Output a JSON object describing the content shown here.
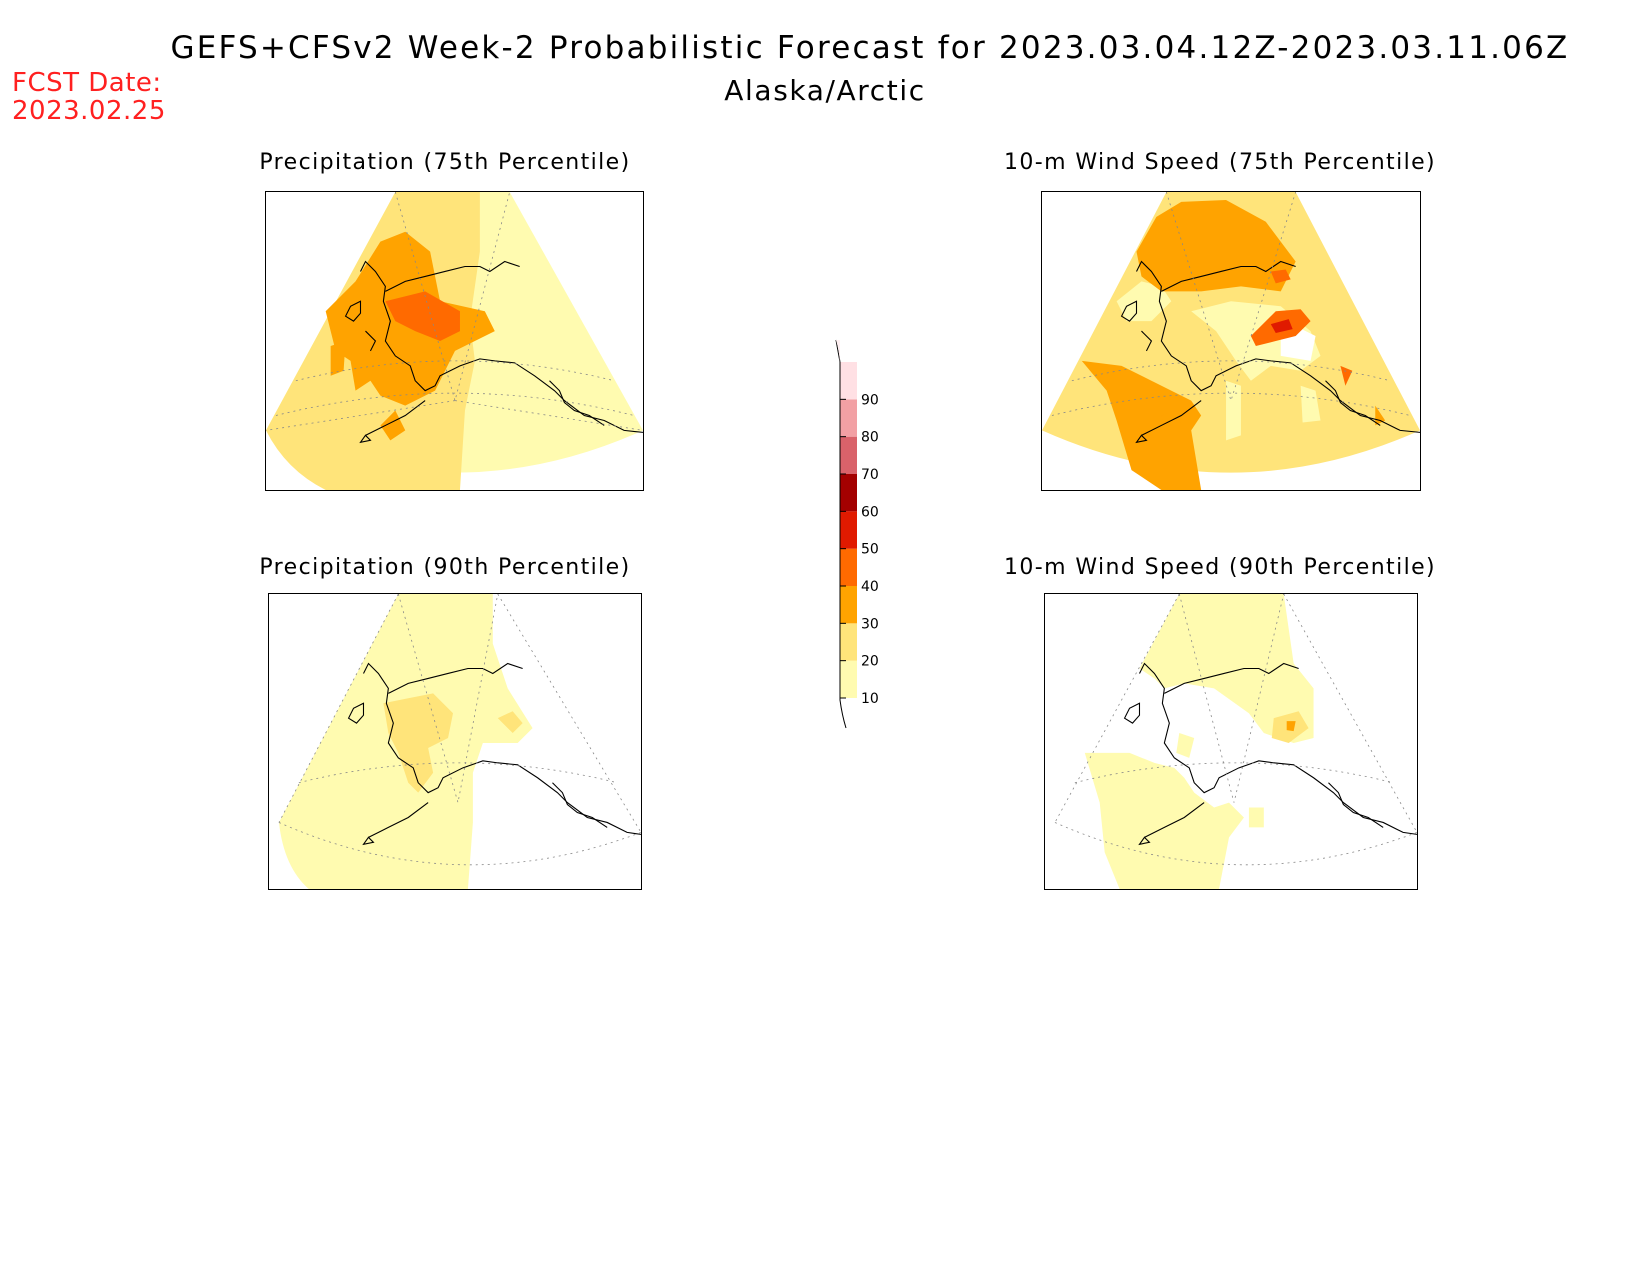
{
  "header": {
    "title": "GEFS+CFSv2 Week-2 Probabilistic Forecast for 2023.03.04.12Z-2023.03.11.06Z",
    "region": "Alaska/Arctic",
    "fcst_label": "FCST Date:",
    "fcst_date": "2023.02.25"
  },
  "panels": [
    {
      "id": "precip-75",
      "title": "Precipitation (75th Percentile)"
    },
    {
      "id": "wind-75",
      "title": "10-m Wind Speed (75th Percentile)"
    },
    {
      "id": "precip-90",
      "title": "Precipitation (90th Percentile)"
    },
    {
      "id": "wind-90",
      "title": "10-m Wind Speed (90th Percentile)"
    }
  ],
  "legend": {
    "levels": [
      {
        "value": "10",
        "color": "#fffbb0"
      },
      {
        "value": "20",
        "color": "#ffe47a"
      },
      {
        "value": "30",
        "color": "#ffa300"
      },
      {
        "value": "40",
        "color": "#ff6a00"
      },
      {
        "value": "50",
        "color": "#e01a00"
      },
      {
        "value": "60",
        "color": "#a30000"
      },
      {
        "value": "70",
        "color": "#d9626a"
      },
      {
        "value": "80",
        "color": "#f2a0a4"
      },
      {
        "value": "90",
        "color": "#ffe0e4"
      }
    ]
  },
  "colors": {
    "lt10": "#fffbb0",
    "lt20": "#ffe47a",
    "lt30": "#ffa300",
    "lt40": "#ff6a00",
    "lt50": "#e01a00",
    "fcst_red": "#ff2020"
  }
}
